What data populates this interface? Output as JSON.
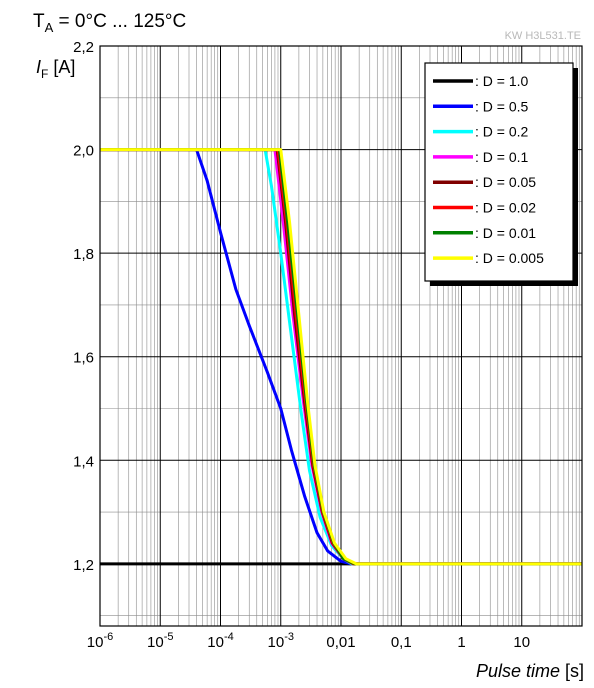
{
  "chart_data": {
    "type": "line",
    "title": "T",
    "title_sub": "A",
    "title_rest": " = 0°C ... 125°C",
    "watermark": "KW H3L531.TE",
    "ylabel_main": "I",
    "ylabel_sub": "F",
    "ylabel_unit": " [A]",
    "xlabel_main": "Pulse time",
    "xlabel_unit": " [s]",
    "x_scale": "log",
    "xlim": [
      1e-06,
      100
    ],
    "ylim": [
      1.08,
      2.2
    ],
    "grid": true,
    "legend_position": "top-right",
    "x_ticks": [
      {
        "value": 1e-06,
        "base": "10",
        "exp": "-6"
      },
      {
        "value": 1e-05,
        "base": "10",
        "exp": "-5"
      },
      {
        "value": 0.0001,
        "base": "10",
        "exp": "-4"
      },
      {
        "value": 0.001,
        "base": "10",
        "exp": "-3"
      },
      {
        "value": 0.01,
        "base": "0,01",
        "exp": ""
      },
      {
        "value": 0.1,
        "base": "0,1",
        "exp": ""
      },
      {
        "value": 1,
        "base": "1",
        "exp": ""
      },
      {
        "value": 10,
        "base": "10",
        "exp": ""
      }
    ],
    "y_ticks": [
      {
        "value": 1.2,
        "label": "1,2"
      },
      {
        "value": 1.4,
        "label": "1,4"
      },
      {
        "value": 1.6,
        "label": "1,6"
      },
      {
        "value": 1.8,
        "label": "1,8"
      },
      {
        "value": 2.0,
        "label": "2,0"
      },
      {
        "value": 2.2,
        "label": "2,2"
      }
    ],
    "series": [
      {
        "name": ": D = 1.0",
        "color": "#000000",
        "points": [
          [
            1e-06,
            1.2
          ],
          [
            100,
            1.2
          ]
        ]
      },
      {
        "name": ": D = 0.5",
        "color": "#0000ff",
        "points": [
          [
            1e-06,
            2.0
          ],
          [
            4e-05,
            2.0
          ],
          [
            6e-05,
            1.94
          ],
          [
            0.0001,
            1.84
          ],
          [
            0.00018,
            1.73
          ],
          [
            0.0003,
            1.66
          ],
          [
            0.0006,
            1.57
          ],
          [
            0.001,
            1.5
          ],
          [
            0.0015,
            1.42
          ],
          [
            0.0025,
            1.33
          ],
          [
            0.004,
            1.26
          ],
          [
            0.006,
            1.225
          ],
          [
            0.01,
            1.205
          ],
          [
            0.015,
            1.2
          ],
          [
            100,
            1.2
          ]
        ]
      },
      {
        "name": ": D = 0.2",
        "color": "#00ffff",
        "points": [
          [
            1e-06,
            2.0
          ],
          [
            0.00055,
            2.0
          ],
          [
            0.0007,
            1.93
          ],
          [
            0.001,
            1.8
          ],
          [
            0.0015,
            1.64
          ],
          [
            0.0022,
            1.49
          ],
          [
            0.003,
            1.38
          ],
          [
            0.0045,
            1.29
          ],
          [
            0.007,
            1.235
          ],
          [
            0.011,
            1.21
          ],
          [
            0.015,
            1.2
          ],
          [
            100,
            1.2
          ]
        ]
      },
      {
        "name": ": D = 0.1",
        "color": "#ff00ff",
        "points": [
          [
            1e-06,
            2.0
          ],
          [
            0.0008,
            2.0
          ],
          [
            0.0011,
            1.86
          ],
          [
            0.0016,
            1.68
          ],
          [
            0.0024,
            1.51
          ],
          [
            0.0033,
            1.39
          ],
          [
            0.0048,
            1.3
          ],
          [
            0.007,
            1.24
          ],
          [
            0.011,
            1.21
          ],
          [
            0.016,
            1.2
          ],
          [
            100,
            1.2
          ]
        ]
      },
      {
        "name": ": D = 0.05",
        "color": "#800000",
        "points": [
          [
            1e-06,
            2.0
          ],
          [
            0.00087,
            2.0
          ],
          [
            0.0012,
            1.86
          ],
          [
            0.0017,
            1.68
          ],
          [
            0.0025,
            1.51
          ],
          [
            0.0034,
            1.39
          ],
          [
            0.0049,
            1.3
          ],
          [
            0.0072,
            1.24
          ],
          [
            0.011,
            1.21
          ],
          [
            0.016,
            1.2
          ],
          [
            100,
            1.2
          ]
        ]
      },
      {
        "name": ": D = 0.02",
        "color": "#ff0000",
        "points": [
          [
            1e-06,
            2.0
          ],
          [
            0.0009,
            2.0
          ],
          [
            0.00125,
            1.86
          ],
          [
            0.0018,
            1.68
          ],
          [
            0.0026,
            1.51
          ],
          [
            0.0035,
            1.39
          ],
          [
            0.005,
            1.3
          ],
          [
            0.0074,
            1.24
          ],
          [
            0.011,
            1.21
          ],
          [
            0.016,
            1.2
          ],
          [
            100,
            1.2
          ]
        ]
      },
      {
        "name": ": D = 0.01",
        "color": "#008000",
        "points": [
          [
            1e-06,
            2.0
          ],
          [
            0.00095,
            2.0
          ],
          [
            0.0013,
            1.86
          ],
          [
            0.0019,
            1.68
          ],
          [
            0.0027,
            1.51
          ],
          [
            0.0036,
            1.39
          ],
          [
            0.0051,
            1.3
          ],
          [
            0.0076,
            1.24
          ],
          [
            0.011,
            1.21
          ],
          [
            0.017,
            1.2
          ],
          [
            100,
            1.2
          ]
        ]
      },
      {
        "name": ": D = 0.005",
        "color": "#ffff00",
        "points": [
          [
            1e-06,
            2.0
          ],
          [
            0.001,
            2.0
          ],
          [
            0.0014,
            1.86
          ],
          [
            0.002,
            1.68
          ],
          [
            0.0028,
            1.51
          ],
          [
            0.0037,
            1.39
          ],
          [
            0.0052,
            1.3
          ],
          [
            0.0078,
            1.24
          ],
          [
            0.012,
            1.21
          ],
          [
            0.018,
            1.2
          ],
          [
            100,
            1.2
          ]
        ]
      }
    ]
  }
}
